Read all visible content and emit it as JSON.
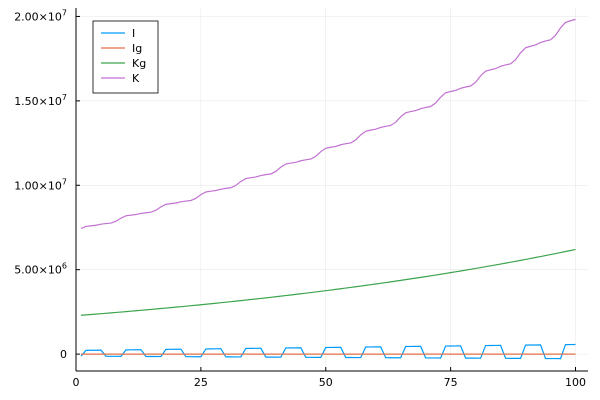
{
  "chart_data": {
    "type": "line",
    "title": "",
    "xlabel": "",
    "ylabel": "",
    "xlim": [
      0,
      102.5
    ],
    "ylim": [
      -1000000,
      20500000
    ],
    "grid": true,
    "legend_position": "top-left",
    "x_ticks": [
      0,
      25,
      50,
      75,
      100
    ],
    "y_ticks": [
      {
        "value": 0,
        "mantissa": "0",
        "exponent": ""
      },
      {
        "value": 5000000,
        "mantissa": "5.00×10",
        "exponent": "6"
      },
      {
        "value": 10000000,
        "mantissa": "1.00×10",
        "exponent": "7"
      },
      {
        "value": 15000000,
        "mantissa": "1.50×10",
        "exponent": "7"
      },
      {
        "value": 20000000,
        "mantissa": "2.00×10",
        "exponent": "7"
      }
    ],
    "series": [
      {
        "name": "I",
        "color": "#009af9",
        "model": "seasonal_oscillation",
        "x_start": 1,
        "x_end": 100,
        "period": 8,
        "center_start": 50000,
        "center_end": 150000,
        "amplitude_start": 170000,
        "amplitude_end": 420000
      },
      {
        "name": "Ig",
        "color": "#e26f46",
        "model": "constant",
        "x_start": 1,
        "x_end": 100,
        "value": 0
      },
      {
        "name": "Kg",
        "color": "#3da44d",
        "model": "exponential",
        "x_start": 1,
        "x_end": 100,
        "y_start": 2300000,
        "y_end": 6200000
      },
      {
        "name": "K",
        "color": "#c271d2",
        "model": "exponential_with_seasonal",
        "x_start": 1,
        "x_end": 100,
        "y_start": 7400000,
        "y_end": 19800000,
        "period": 8,
        "wobble_amplitude": 0.02
      }
    ]
  }
}
